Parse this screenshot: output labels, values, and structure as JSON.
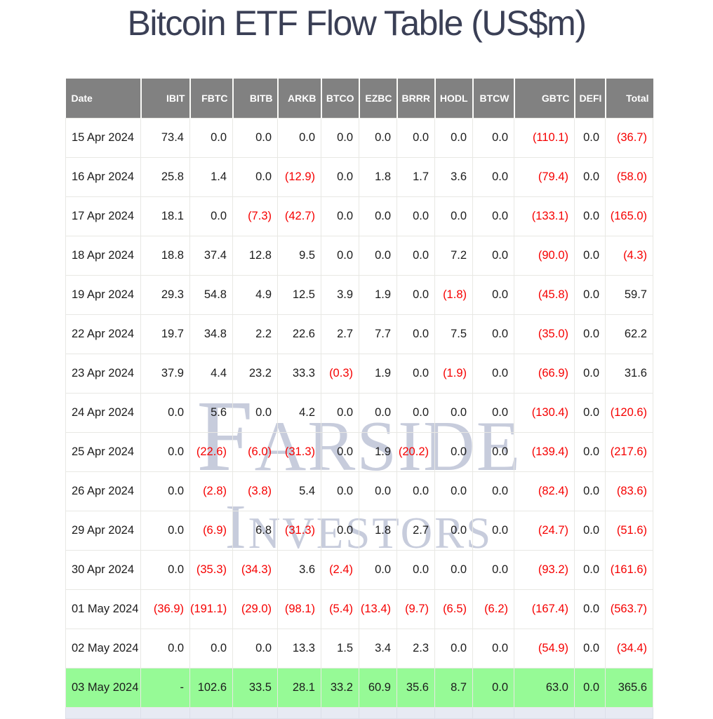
{
  "title": "Bitcoin ETF Flow Table (US$m)",
  "watermark": {
    "line1": "Farside",
    "line2": "Investors"
  },
  "colors": {
    "header_bg": "#818181",
    "header_text": "#ffffff",
    "negative": "#f60000",
    "text": "#1c1c1c",
    "highlight_row_bg": "#96fa96",
    "next_row_bg": "#e7eaf3",
    "title": "#3a3f55",
    "watermark": "#c7ccdc",
    "border": "#e8e8e4"
  },
  "format": {
    "negative_style": "parentheses-red",
    "null_display": "-",
    "decimals": 1
  },
  "chart_data": {
    "type": "table",
    "title": "Bitcoin ETF Flow Table (US$m)",
    "columns": [
      "Date",
      "IBIT",
      "FBTC",
      "BITB",
      "ARKB",
      "BTCO",
      "EZBC",
      "BRRR",
      "HODL",
      "BTCW",
      "GBTC",
      "DEFI",
      "Total"
    ],
    "rows": [
      {
        "date": "15 Apr 2024",
        "values": [
          73.4,
          0.0,
          0.0,
          0.0,
          0.0,
          0.0,
          0.0,
          0.0,
          0.0,
          -110.1,
          0.0,
          -36.7
        ]
      },
      {
        "date": "16 Apr 2024",
        "values": [
          25.8,
          1.4,
          0.0,
          -12.9,
          0.0,
          1.8,
          1.7,
          3.6,
          0.0,
          -79.4,
          0.0,
          -58.0
        ]
      },
      {
        "date": "17 Apr 2024",
        "values": [
          18.1,
          0.0,
          -7.3,
          -42.7,
          0.0,
          0.0,
          0.0,
          0.0,
          0.0,
          -133.1,
          0.0,
          -165.0
        ]
      },
      {
        "date": "18 Apr 2024",
        "values": [
          18.8,
          37.4,
          12.8,
          9.5,
          0.0,
          0.0,
          0.0,
          7.2,
          0.0,
          -90.0,
          0.0,
          -4.3
        ]
      },
      {
        "date": "19 Apr 2024",
        "values": [
          29.3,
          54.8,
          4.9,
          12.5,
          3.9,
          1.9,
          0.0,
          -1.8,
          0.0,
          -45.8,
          0.0,
          59.7
        ]
      },
      {
        "date": "22 Apr 2024",
        "values": [
          19.7,
          34.8,
          2.2,
          22.6,
          2.7,
          7.7,
          0.0,
          7.5,
          0.0,
          -35.0,
          0.0,
          62.2
        ]
      },
      {
        "date": "23 Apr 2024",
        "values": [
          37.9,
          4.4,
          23.2,
          33.3,
          -0.3,
          1.9,
          0.0,
          -1.9,
          0.0,
          -66.9,
          0.0,
          31.6
        ]
      },
      {
        "date": "24 Apr 2024",
        "values": [
          0.0,
          5.6,
          0.0,
          4.2,
          0.0,
          0.0,
          0.0,
          0.0,
          0.0,
          -130.4,
          0.0,
          -120.6
        ]
      },
      {
        "date": "25 Apr 2024",
        "values": [
          0.0,
          -22.6,
          -6.0,
          -31.3,
          0.0,
          1.9,
          -20.2,
          0.0,
          0.0,
          -139.4,
          0.0,
          -217.6
        ]
      },
      {
        "date": "26 Apr 2024",
        "values": [
          0.0,
          -2.8,
          -3.8,
          5.4,
          0.0,
          0.0,
          0.0,
          0.0,
          0.0,
          -82.4,
          0.0,
          -83.6
        ]
      },
      {
        "date": "29 Apr 2024",
        "values": [
          0.0,
          -6.9,
          6.8,
          -31.3,
          0.0,
          1.8,
          2.7,
          0.0,
          0.0,
          -24.7,
          0.0,
          -51.6
        ]
      },
      {
        "date": "30 Apr 2024",
        "values": [
          0.0,
          -35.3,
          -34.3,
          3.6,
          -2.4,
          0.0,
          0.0,
          0.0,
          0.0,
          -93.2,
          0.0,
          -161.6
        ]
      },
      {
        "date": "01 May 2024",
        "values": [
          -36.9,
          -191.1,
          -29.0,
          -98.1,
          -5.4,
          -13.4,
          -9.7,
          -6.5,
          -6.2,
          -167.4,
          0.0,
          -563.7
        ]
      },
      {
        "date": "02 May 2024",
        "values": [
          0.0,
          0.0,
          0.0,
          13.3,
          1.5,
          3.4,
          2.3,
          0.0,
          0.0,
          -54.9,
          0.0,
          -34.4
        ]
      },
      {
        "date": "03 May 2024",
        "values": [
          null,
          102.6,
          33.5,
          28.1,
          33.2,
          60.9,
          35.6,
          8.7,
          0.0,
          63.0,
          0.0,
          365.6
        ],
        "highlight": true
      }
    ]
  }
}
